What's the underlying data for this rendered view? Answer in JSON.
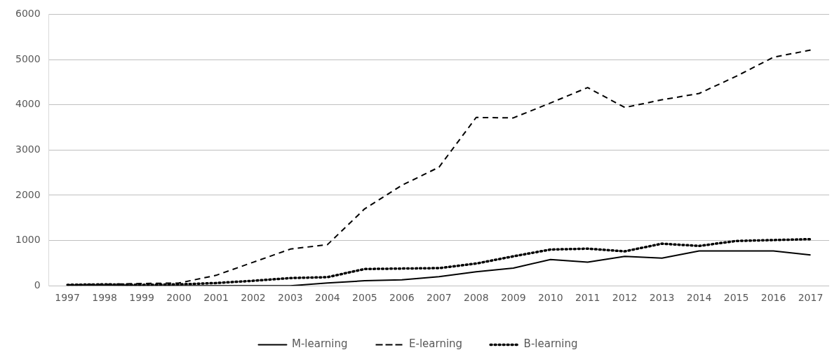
{
  "chart_data": {
    "type": "line",
    "categories": [
      "1997",
      "1998",
      "1999",
      "2000",
      "2001",
      "2002",
      "2003",
      "2004",
      "2005",
      "2006",
      "2007",
      "2008",
      "2009",
      "2010",
      "2011",
      "2012",
      "2013",
      "2014",
      "2015",
      "2016",
      "2017"
    ],
    "series": [
      {
        "name": "M-learning",
        "color": "#000000",
        "line_style": "solid",
        "values": [
          10,
          10,
          0,
          0,
          0,
          0,
          0,
          60,
          110,
          130,
          200,
          310,
          390,
          580,
          520,
          650,
          610,
          770,
          770,
          770,
          680
        ]
      },
      {
        "name": "E-learning",
        "color": "#000000",
        "line_style": "dashed",
        "values": [
          20,
          30,
          50,
          60,
          230,
          520,
          810,
          910,
          1700,
          2220,
          2620,
          3720,
          3710,
          4040,
          4380,
          3940,
          4110,
          4250,
          4630,
          5050,
          5210
        ]
      },
      {
        "name": "B-learning",
        "color": "#000000",
        "line_style": "dotted",
        "values": [
          20,
          30,
          20,
          30,
          60,
          110,
          170,
          190,
          370,
          380,
          390,
          490,
          650,
          800,
          820,
          760,
          930,
          880,
          990,
          1010,
          1030
        ]
      }
    ],
    "ylim": [
      0,
      6000
    ],
    "yticks": [
      0,
      1000,
      2000,
      3000,
      4000,
      5000,
      6000
    ],
    "grid": "y",
    "legend": "bottom",
    "marker": "none"
  }
}
